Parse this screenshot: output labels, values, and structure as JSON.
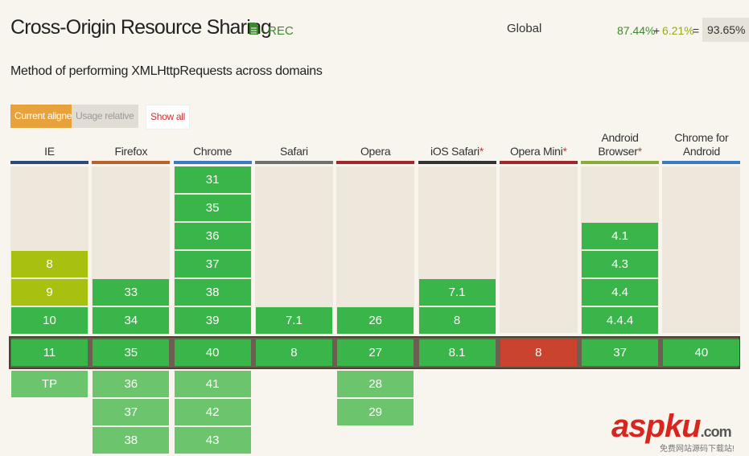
{
  "header": {
    "title": "Cross-Origin Resource Sharing",
    "status": "- REC",
    "region": "Global",
    "supported": "87.44%",
    "plus": "+",
    "partial": "6.21%",
    "equals": "=",
    "total": "93.65%"
  },
  "description": "Method of performing XMLHttpRequests across domains",
  "buttons": [
    {
      "label": "Current aligned",
      "state": "active"
    },
    {
      "label": "Usage relative",
      "state": "inactive"
    },
    {
      "label": "Show all",
      "state": "link"
    }
  ],
  "browsers": [
    {
      "name": "IE",
      "color": "#2c4a7e",
      "past": [
        {
          "version": "8",
          "support": "partial"
        },
        {
          "version": "9",
          "support": "partial"
        },
        {
          "version": "10",
          "support": "yes"
        }
      ],
      "current": {
        "version": "11",
        "support": "yes"
      },
      "future": [
        {
          "version": "TP",
          "support": "yes"
        }
      ]
    },
    {
      "name": "Firefox",
      "color": "#b8632a",
      "past": [
        {
          "version": "33",
          "support": "yes"
        },
        {
          "version": "34",
          "support": "yes"
        }
      ],
      "current": {
        "version": "35",
        "support": "yes"
      },
      "future": [
        {
          "version": "36",
          "support": "yes"
        },
        {
          "version": "37",
          "support": "yes"
        },
        {
          "version": "38",
          "support": "yes"
        }
      ]
    },
    {
      "name": "Chrome",
      "color": "#3a7cc4",
      "past": [
        {
          "version": "31",
          "support": "yes"
        },
        {
          "version": "35",
          "support": "yes"
        },
        {
          "version": "36",
          "support": "yes"
        },
        {
          "version": "37",
          "support": "yes"
        },
        {
          "version": "38",
          "support": "yes"
        },
        {
          "version": "39",
          "support": "yes"
        }
      ],
      "current": {
        "version": "40",
        "support": "yes"
      },
      "future": [
        {
          "version": "41",
          "support": "yes"
        },
        {
          "version": "42",
          "support": "yes"
        },
        {
          "version": "43",
          "support": "yes"
        }
      ]
    },
    {
      "name": "Safari",
      "color": "#707070",
      "past": [
        {
          "version": "7.1",
          "support": "yes"
        }
      ],
      "current": {
        "version": "8",
        "support": "yes"
      },
      "future": []
    },
    {
      "name": "Opera",
      "color": "#a3282a",
      "past": [
        {
          "version": "26",
          "support": "yes"
        }
      ],
      "current": {
        "version": "27",
        "support": "yes"
      },
      "future": [
        {
          "version": "28",
          "support": "yes"
        },
        {
          "version": "29",
          "support": "yes"
        }
      ]
    },
    {
      "name": "iOS Safari",
      "asterisk": "*",
      "color": "#333333",
      "past": [
        {
          "version": "7.1",
          "support": "yes"
        },
        {
          "version": "8",
          "support": "yes"
        }
      ],
      "current": {
        "version": "8.1",
        "support": "yes"
      },
      "future": []
    },
    {
      "name": "Opera Mini",
      "asterisk": "*",
      "color": "#a3282a",
      "past": [],
      "current": {
        "version": "8",
        "support": "no"
      },
      "future": []
    },
    {
      "name": "Android Browser",
      "asterisk": "*",
      "color": "#8aac3c",
      "past": [
        {
          "version": "4.1",
          "support": "yes"
        },
        {
          "version": "4.3",
          "support": "yes"
        },
        {
          "version": "4.4",
          "support": "yes"
        },
        {
          "version": "4.4.4",
          "support": "yes"
        }
      ],
      "current": {
        "version": "37",
        "support": "yes"
      },
      "future": []
    },
    {
      "name": "Chrome for Android",
      "color": "#3a7cc4",
      "past": [],
      "current": {
        "version": "40",
        "support": "yes"
      },
      "future": []
    }
  ],
  "watermark": {
    "brand": "asp",
    "brand_accent": "ku",
    "domain": ".com",
    "tagline": "免费网站源码下载站!"
  }
}
